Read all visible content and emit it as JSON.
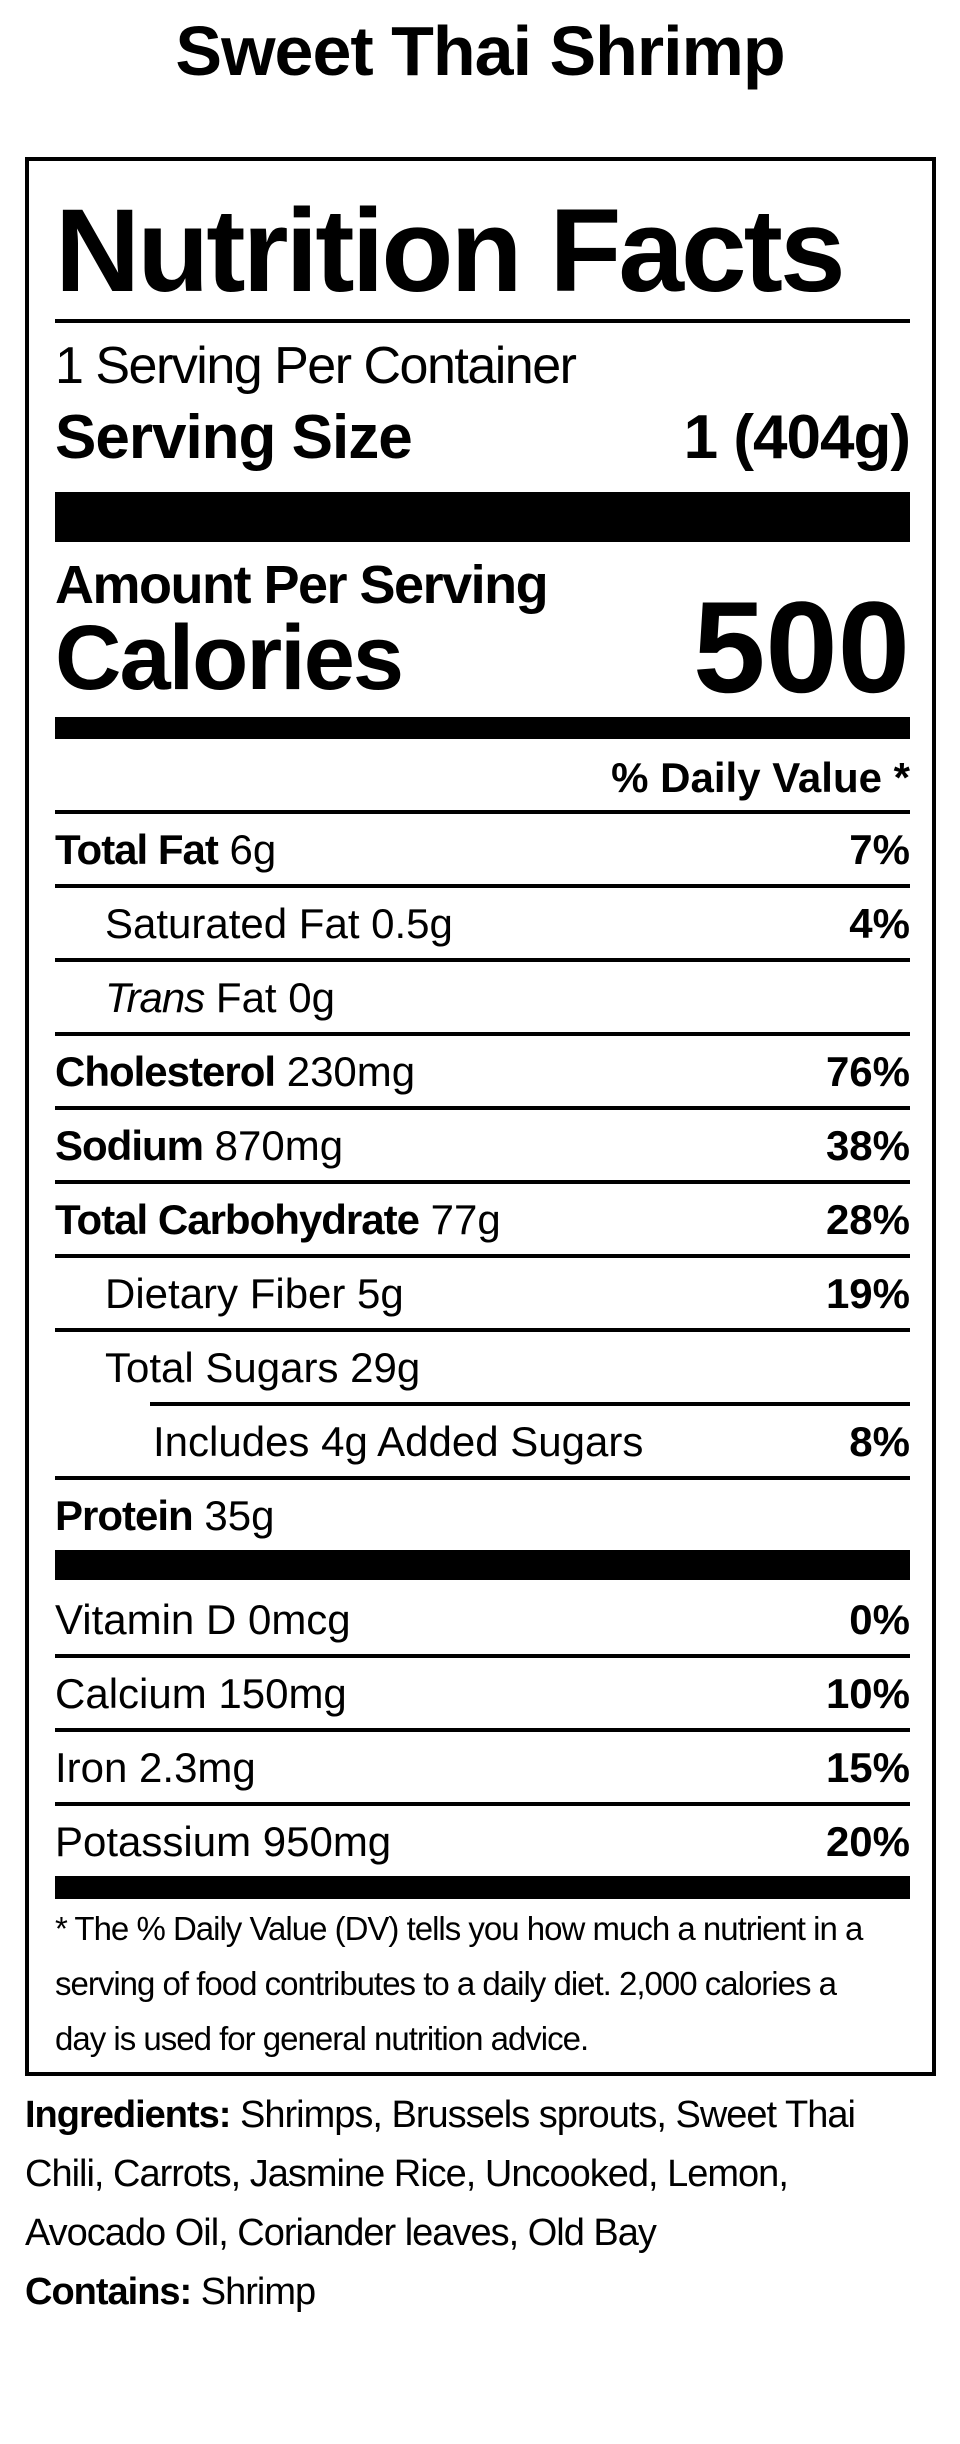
{
  "page": {
    "title": "Sweet Thai Shrimp"
  },
  "colors": {
    "text": "#000000",
    "background": "#ffffff"
  },
  "label": {
    "heading": "Nutrition Facts",
    "servings_per_container": "1 Serving Per Container",
    "serving_size_label": "Serving Size",
    "serving_size_value": "1 (404g)",
    "amount_per_serving": "Amount Per Serving",
    "calories_label": "Calories",
    "calories_value": "500",
    "daily_value_header": "% Daily Value *",
    "rows": [
      {
        "bold": "Total Fat",
        "rest": " 6g",
        "dv": "7%"
      },
      {
        "rest": "Saturated Fat 0.5g",
        "dv": "4%"
      },
      {
        "italic": "Trans",
        "rest": " Fat 0g",
        "dv": ""
      },
      {
        "bold": "Cholesterol",
        "rest": " 230mg",
        "dv": "76%"
      },
      {
        "bold": "Sodium",
        "rest": " 870mg",
        "dv": "38%"
      },
      {
        "bold": "Total Carbohydrate",
        "rest": " 77g",
        "dv": "28%"
      },
      {
        "rest": "Dietary Fiber 5g",
        "dv": "19%"
      },
      {
        "rest": "Total Sugars 29g",
        "dv": ""
      },
      {
        "rest": "Includes 4g Added Sugars",
        "dv": "8%"
      },
      {
        "bold": "Protein",
        "rest": " 35g",
        "dv": ""
      }
    ],
    "vitamin_rows": [
      {
        "rest": "Vitamin D 0mcg",
        "dv": "0%"
      },
      {
        "rest": "Calcium 150mg",
        "dv": "10%"
      },
      {
        "rest": "Iron 2.3mg",
        "dv": "15%"
      },
      {
        "rest": "Potassium 950mg",
        "dv": "20%"
      }
    ],
    "footnote_lines": [
      "* The % Daily Value (DV) tells you how much a nutrient in a",
      "serving of food contributes to a daily diet. 2,000 calories a",
      "day is used for general nutrition advice."
    ]
  },
  "ingredients": {
    "label": "Ingredients:",
    "line1_rest": " Shrimps, Brussels sprouts, Sweet Thai",
    "line2": "Chili, Carrots, Jasmine Rice, Uncooked, Lemon,",
    "line3": "Avocado Oil, Coriander leaves, Old Bay",
    "contains_label": "Contains:",
    "contains_value": " Shrimp"
  }
}
